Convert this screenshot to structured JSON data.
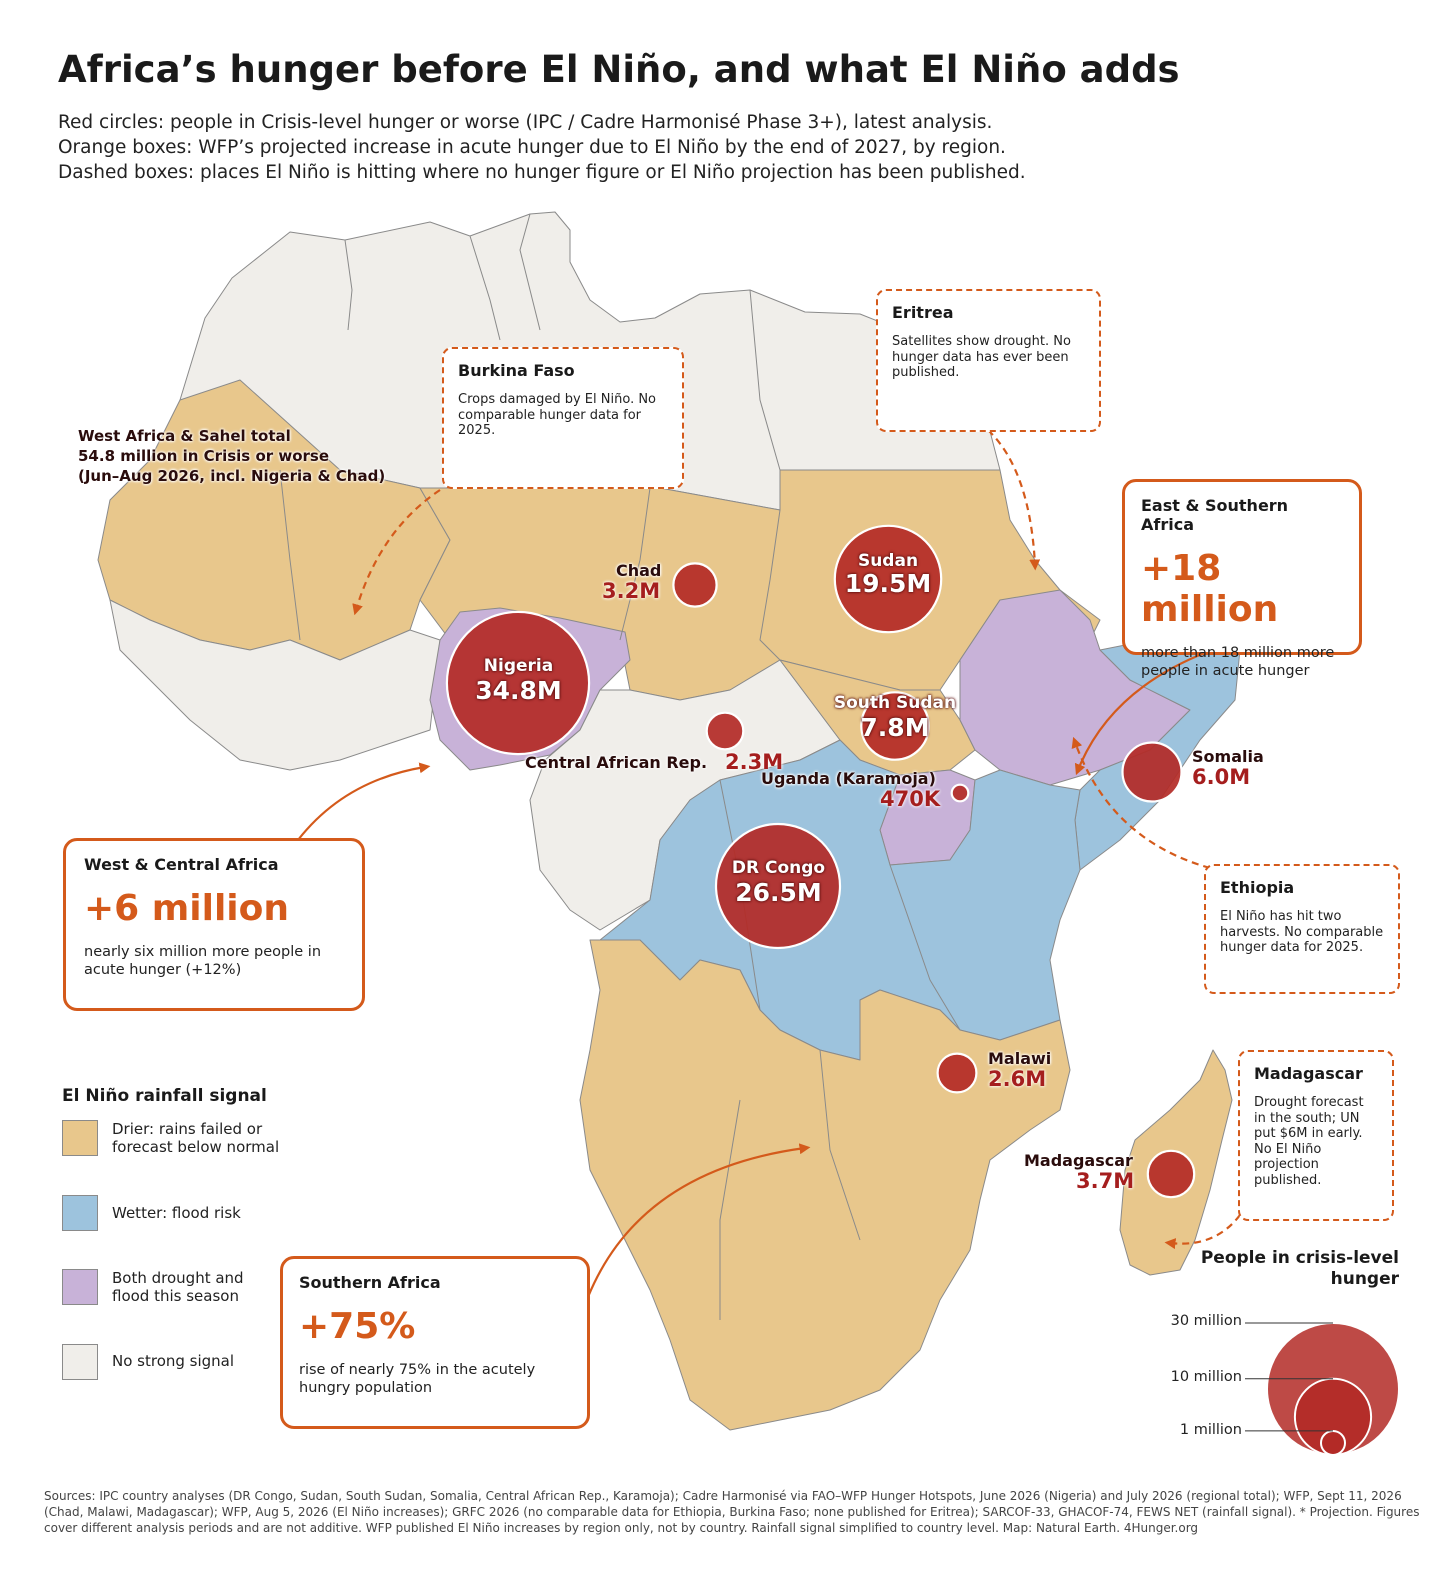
{
  "title": "Africa’s hunger before El Niño, and what El Niño adds",
  "subtitle": [
    "Red circles: people in Crisis-level hunger or worse (IPC / Cadre Harmonisé Phase 3+), latest analysis.",
    "Orange boxes: WFP’s projected increase in acute hunger due to El Niño by the end of 2027, by region.",
    "Dashed boxes: places El Niño is hitting where no hunger figure or El Niño projection has been published."
  ],
  "colors": {
    "drier": "#e8c78c",
    "wetter": "#9dc3dd",
    "both": "#c8b2d8",
    "none": "#f0eeea",
    "circle": "#b32a26",
    "accent": "#d45a1b"
  },
  "west_africa_total": {
    "line1": "West Africa & Sahel total",
    "line2": "54.8 million in Crisis or worse",
    "line3": "(Jun–Aug 2026, incl. Nigeria & Chad)"
  },
  "countries": [
    {
      "name": "Nigeria",
      "value": "34.8M",
      "millions": 34.8
    },
    {
      "name": "Sudan",
      "value": "19.5M",
      "millions": 19.5
    },
    {
      "name": "Chad",
      "value": "3.2M",
      "millions": 3.2
    },
    {
      "name": "South Sudan",
      "value": "7.8M",
      "millions": 7.8
    },
    {
      "name": "Central African Rep.",
      "value": "2.3M",
      "millions": 2.3
    },
    {
      "name": "Uganda (Karamoja)",
      "value": "470K",
      "millions": 0.47
    },
    {
      "name": "Somalia",
      "value": "6.0M",
      "millions": 6.0
    },
    {
      "name": "DR Congo",
      "value": "26.5M",
      "millions": 26.5
    },
    {
      "name": "Malawi",
      "value": "2.6M",
      "millions": 2.6
    },
    {
      "name": "Madagascar",
      "value": "3.7M",
      "millions": 3.7
    }
  ],
  "regions": {
    "east_southern": {
      "title": "East & Southern Africa",
      "figure": "+18 million",
      "text": "more than 18 million more people in acute hunger"
    },
    "west_central": {
      "title": "West & Central Africa",
      "figure": "+6 million",
      "text": "nearly six million more people in acute hunger (+12%)"
    },
    "southern": {
      "title": "Southern Africa",
      "figure": "+75%",
      "text": "rise of nearly 75% in the acutely hungry population"
    }
  },
  "notes": {
    "burkina": {
      "title": "Burkina Faso",
      "text": "Crops damaged by El Niño. No comparable hunger data for 2025."
    },
    "eritrea": {
      "title": "Eritrea",
      "text": "Satellites show drought. No hunger data has ever been published."
    },
    "ethiopia": {
      "title": "Ethiopia",
      "text": "El Niño has hit two harvests. No comparable hunger data for 2025."
    },
    "madagascar": {
      "title": "Madagascar",
      "text": "Drought forecast in the south; UN put $6M in early. No El Niño projection published."
    }
  },
  "legend": {
    "title": "El Niño rainfall signal",
    "items": [
      {
        "label": "Drier: rains failed or forecast below normal",
        "color": "#e8c78c"
      },
      {
        "label": "Wetter: flood risk",
        "color": "#9dc3dd"
      },
      {
        "label": "Both drought and flood this season",
        "color": "#c8b2d8"
      },
      {
        "label": "No strong signal",
        "color": "#f0eeea"
      }
    ]
  },
  "size_legend": {
    "title": "People in crisis-level hunger",
    "items": [
      {
        "label": "30 million",
        "millions": 30
      },
      {
        "label": "10 million",
        "millions": 10
      },
      {
        "label": "1 million",
        "millions": 1
      }
    ]
  },
  "sources": "Sources: IPC country analyses (DR Congo, Sudan, South Sudan, Somalia, Central African Rep., Karamoja); Cadre Harmonisé via FAO–WFP Hunger Hotspots, June 2026 (Nigeria) and July 2026 (regional total); WFP, Sept 11, 2026 (Chad, Malawi, Madagascar); WFP, Aug 5, 2026 (El Niño increases); GRFC 2026 (no comparable data for Ethiopia, Burkina Faso; none published for Eritrea); SARCOF-33, GHACOF-74, FEWS NET (rainfall signal). * Projection. Figures cover different analysis periods and are not additive. WFP published El Niño increases by region only, not by country. Rainfall signal simplified to country level. Map: Natural Earth. 4Hunger.org"
}
